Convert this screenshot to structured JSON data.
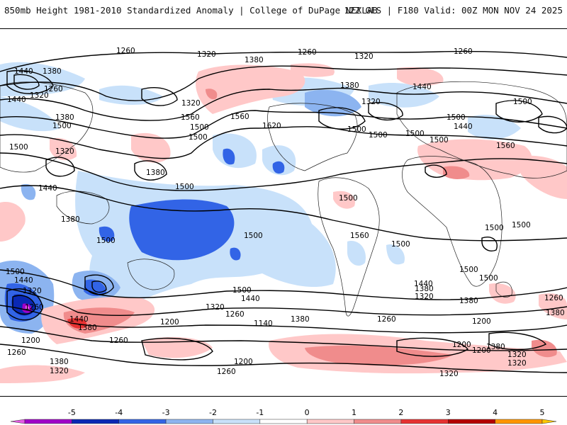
{
  "header": {
    "title_left": "850mb Height 1981-2010 Standardized Anomaly | College of DuPage NEXLAB",
    "title_right": "12Z GFS | F180 Valid: 00Z MON NOV 24 2025"
  },
  "map": {
    "contour_labels": [
      "1260",
      "1320",
      "1380",
      "1440",
      "1500",
      "1560",
      "1620",
      "1200",
      "1140"
    ],
    "placed_labels": [
      "1260",
      "1320",
      "1380",
      "1260",
      "1320",
      "1260",
      "1440",
      "1380",
      "1320",
      "1440",
      "1320",
      "1380",
      "1260",
      "1320",
      "1440",
      "1500",
      "1380",
      "1500",
      "1560",
      "1500",
      "1500",
      "1560",
      "1620",
      "1500",
      "1500",
      "1500",
      "1500",
      "1440",
      "1500",
      "1560",
      "1500",
      "1320",
      "1380",
      "1440",
      "1500",
      "1380",
      "1500",
      "1500",
      "1500",
      "1560",
      "1500",
      "1500",
      "1500",
      "1500",
      "1500",
      "1440",
      "1320",
      "1260",
      "1380",
      "1440",
      "1440",
      "1500",
      "1320",
      "1380",
      "1260",
      "1200",
      "1140",
      "1200",
      "1260",
      "1260",
      "1380",
      "1320",
      "1200",
      "1380",
      "1320",
      "1380",
      "1200",
      "1260",
      "1200",
      "1320",
      "1320",
      "1500",
      "1440",
      "1380",
      "1200",
      "1260",
      "1380",
      "1320",
      "1260"
    ]
  },
  "colorbar": {
    "ticks": [
      "-5",
      "-4",
      "-3",
      "-2",
      "-1",
      "0",
      "1",
      "2",
      "3",
      "4",
      "5"
    ],
    "colors": [
      "#e65ce6",
      "#a000c8",
      "#0a28b4",
      "#3264e6",
      "#8cb4f0",
      "#c8e1fa",
      "#ffffff",
      "#ffc8c8",
      "#f08c8c",
      "#e63232",
      "#b40000",
      "#ff9600",
      "#ffc800"
    ]
  }
}
